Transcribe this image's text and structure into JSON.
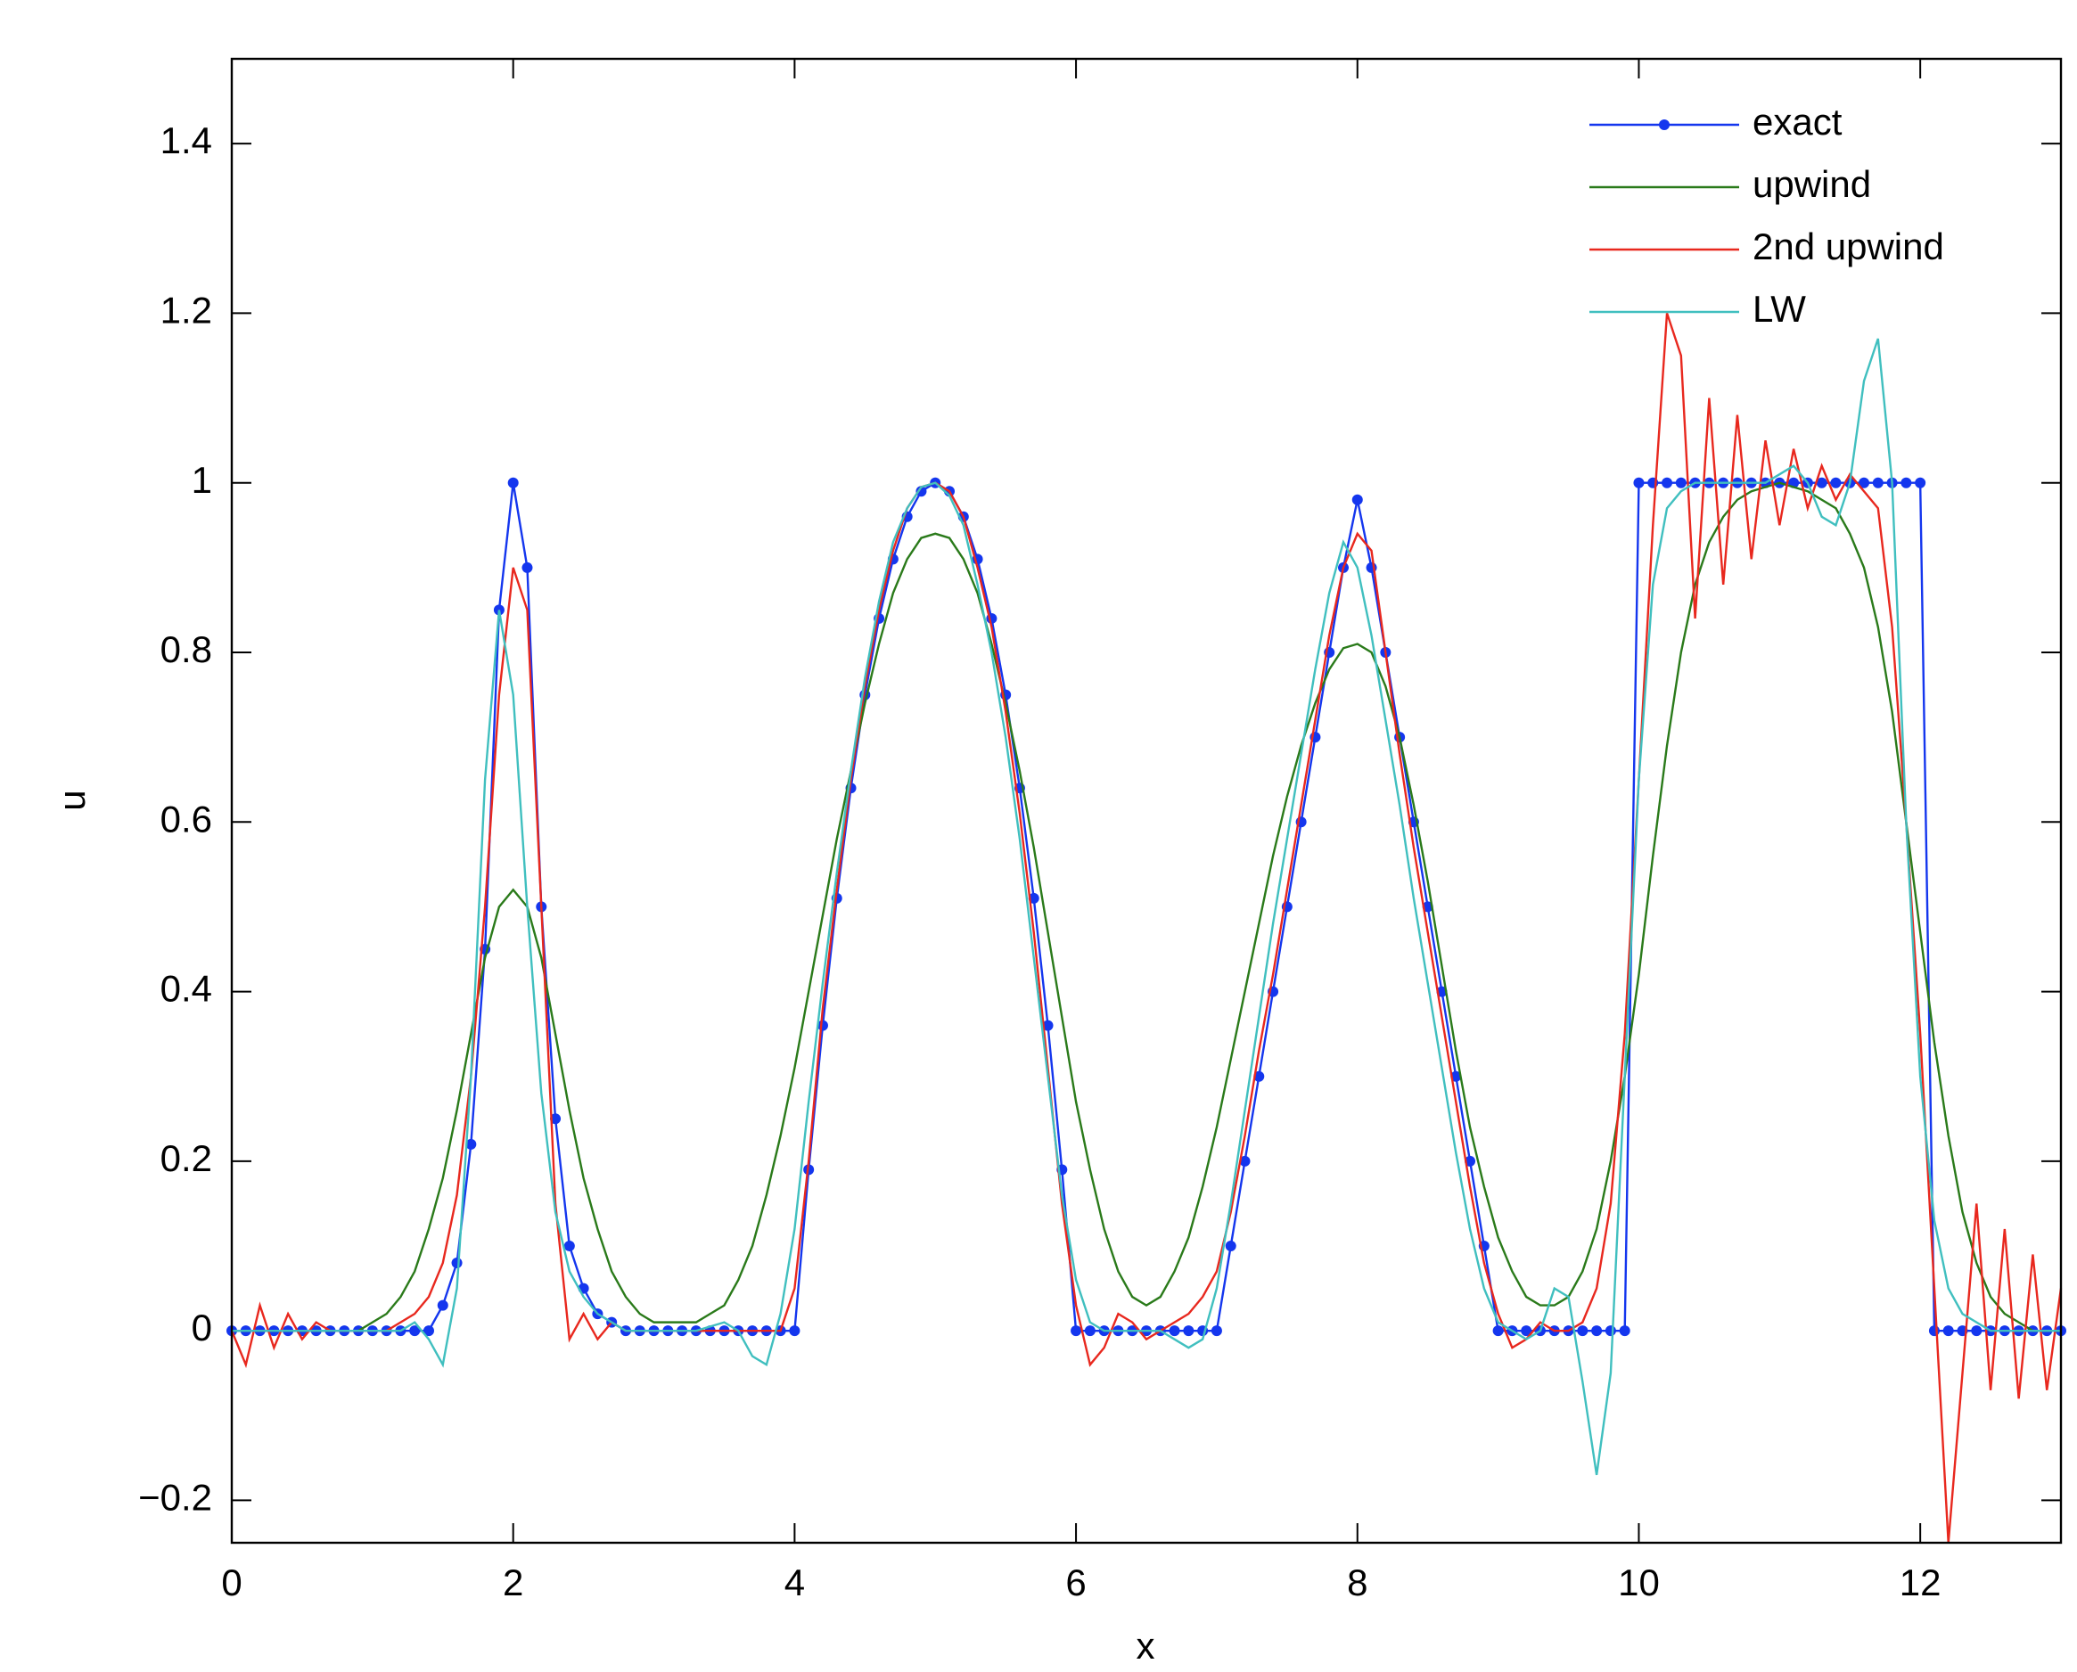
{
  "chart_data": {
    "type": "line",
    "xlabel": "x",
    "ylabel": "u",
    "xlim": [
      0,
      13
    ],
    "ylim": [
      -0.25,
      1.5
    ],
    "xticks": [
      0,
      2,
      4,
      6,
      8,
      10,
      12
    ],
    "yticks": [
      {
        "value": -0.2,
        "label": "−0.2"
      },
      0,
      0.2,
      0.4,
      0.6,
      0.8,
      1,
      1.2,
      1.4
    ],
    "legend": "upper right",
    "x": [
      0,
      0.1,
      0.2,
      0.3,
      0.4,
      0.5,
      0.6,
      0.7,
      0.8,
      0.9,
      1,
      1.1,
      1.2,
      1.3,
      1.4,
      1.5,
      1.6,
      1.7,
      1.8,
      1.9,
      2,
      2.1,
      2.2,
      2.3,
      2.4,
      2.5,
      2.6,
      2.7,
      2.8,
      2.9,
      3,
      3.1,
      3.2,
      3.3,
      3.4,
      3.5,
      3.6,
      3.7,
      3.8,
      3.9,
      4,
      4.1,
      4.2,
      4.3,
      4.4,
      4.5,
      4.6,
      4.7,
      4.8,
      4.9,
      5,
      5.1,
      5.2,
      5.3,
      5.4,
      5.5,
      5.6,
      5.7,
      5.8,
      5.9,
      6,
      6.1,
      6.2,
      6.3,
      6.4,
      6.5,
      6.6,
      6.7,
      6.8,
      6.9,
      7,
      7.1,
      7.2,
      7.3,
      7.4,
      7.5,
      7.6,
      7.7,
      7.8,
      7.9,
      8,
      8.1,
      8.2,
      8.3,
      8.4,
      8.5,
      8.6,
      8.7,
      8.8,
      8.9,
      9,
      9.1,
      9.2,
      9.3,
      9.4,
      9.5,
      9.6,
      9.7,
      9.8,
      9.9,
      10,
      10.1,
      10.2,
      10.3,
      10.4,
      10.5,
      10.6,
      10.7,
      10.8,
      10.9,
      11,
      11.1,
      11.2,
      11.3,
      11.4,
      11.5,
      11.6,
      11.7,
      11.8,
      11.9,
      12,
      12.1,
      12.2,
      12.3,
      12.4,
      12.5,
      12.6,
      12.7,
      12.8,
      12.9,
      13
    ],
    "series": [
      {
        "name": "exact",
        "color": "#1436ee",
        "marker": "dot",
        "values": [
          0,
          0,
          0,
          0,
          0,
          0,
          0,
          0,
          0,
          0,
          0,
          0,
          0,
          0,
          0,
          0.03,
          0.08,
          0.22,
          0.45,
          0.85,
          1,
          0.9,
          0.5,
          0.25,
          0.1,
          0.05,
          0.02,
          0.01,
          0,
          0,
          0,
          0,
          0,
          0,
          0,
          0,
          0,
          0,
          0,
          0,
          0,
          0.19,
          0.36,
          0.51,
          0.64,
          0.75,
          0.84,
          0.91,
          0.96,
          0.99,
          1,
          0.99,
          0.96,
          0.91,
          0.84,
          0.75,
          0.64,
          0.51,
          0.36,
          0.19,
          0,
          0,
          0,
          0,
          0,
          0,
          0,
          0,
          0,
          0,
          0,
          0.1,
          0.2,
          0.3,
          0.4,
          0.5,
          0.6,
          0.7,
          0.8,
          0.9,
          0.98,
          0.9,
          0.8,
          0.7,
          0.6,
          0.5,
          0.4,
          0.3,
          0.2,
          0.1,
          0,
          0,
          0,
          0,
          0,
          0,
          0,
          0,
          0,
          0,
          1,
          1,
          1,
          1,
          1,
          1,
          1,
          1,
          1,
          1,
          1,
          1,
          1,
          1,
          1,
          1,
          1,
          1,
          1,
          1,
          1,
          0,
          0,
          0,
          0,
          0,
          0,
          0,
          0,
          0,
          0
        ]
      },
      {
        "name": "upwind",
        "color": "#2a7a1a",
        "values": [
          0,
          0,
          0,
          0,
          0,
          0,
          0,
          0,
          0,
          0,
          0.01,
          0.02,
          0.04,
          0.07,
          0.12,
          0.18,
          0.26,
          0.35,
          0.44,
          0.5,
          0.52,
          0.5,
          0.44,
          0.35,
          0.26,
          0.18,
          0.12,
          0.07,
          0.04,
          0.02,
          0.01,
          0.01,
          0.01,
          0.01,
          0.02,
          0.03,
          0.06,
          0.1,
          0.16,
          0.23,
          0.31,
          0.4,
          0.49,
          0.58,
          0.66,
          0.74,
          0.81,
          0.87,
          0.91,
          0.935,
          0.94,
          0.935,
          0.91,
          0.87,
          0.81,
          0.74,
          0.66,
          0.57,
          0.47,
          0.37,
          0.27,
          0.19,
          0.12,
          0.07,
          0.04,
          0.03,
          0.04,
          0.07,
          0.11,
          0.17,
          0.24,
          0.32,
          0.4,
          0.48,
          0.56,
          0.63,
          0.69,
          0.74,
          0.78,
          0.805,
          0.81,
          0.8,
          0.76,
          0.7,
          0.62,
          0.53,
          0.43,
          0.33,
          0.24,
          0.17,
          0.11,
          0.07,
          0.04,
          0.03,
          0.03,
          0.04,
          0.07,
          0.12,
          0.2,
          0.3,
          0.42,
          0.56,
          0.69,
          0.8,
          0.88,
          0.93,
          0.96,
          0.98,
          0.99,
          0.995,
          1,
          0.995,
          0.99,
          0.98,
          0.97,
          0.94,
          0.9,
          0.83,
          0.73,
          0.6,
          0.47,
          0.34,
          0.23,
          0.14,
          0.08,
          0.04,
          0.02,
          0.01,
          0,
          0,
          0
        ]
      },
      {
        "name": "2nd upwind",
        "color": "#e8281e",
        "values": [
          0,
          -0.04,
          0.03,
          -0.02,
          0.02,
          -0.01,
          0.01,
          0,
          0,
          0,
          0,
          0,
          0.01,
          0.02,
          0.04,
          0.08,
          0.16,
          0.3,
          0.5,
          0.75,
          0.9,
          0.85,
          0.5,
          0.15,
          -0.01,
          0.02,
          -0.01,
          0.01,
          0,
          0,
          0,
          0,
          0,
          0,
          0,
          0,
          0,
          0,
          0,
          0,
          0.05,
          0.2,
          0.38,
          0.52,
          0.65,
          0.76,
          0.85,
          0.92,
          0.97,
          0.995,
          1,
          0.99,
          0.96,
          0.9,
          0.83,
          0.73,
          0.61,
          0.47,
          0.31,
          0.15,
          0.03,
          -0.04,
          -0.02,
          0.02,
          0.01,
          -0.01,
          0,
          0.01,
          0.02,
          0.04,
          0.07,
          0.14,
          0.23,
          0.33,
          0.42,
          0.52,
          0.62,
          0.72,
          0.82,
          0.9,
          0.94,
          0.92,
          0.8,
          0.68,
          0.57,
          0.47,
          0.37,
          0.27,
          0.17,
          0.08,
          0.02,
          -0.02,
          -0.01,
          0.01,
          0,
          0,
          0.01,
          0.05,
          0.15,
          0.35,
          0.65,
          0.95,
          1.2,
          1.15,
          0.84,
          1.1,
          0.88,
          1.08,
          0.91,
          1.05,
          0.95,
          1.04,
          0.97,
          1.02,
          0.98,
          1.01,
          0.99,
          0.97,
          0.83,
          0.6,
          0.35,
          0.05,
          -0.25,
          -0.05,
          0.15,
          -0.07,
          0.12,
          -0.08,
          0.09,
          -0.07,
          0.05
        ]
      },
      {
        "name": "LW",
        "color": "#40bfbf",
        "values": [
          0,
          0,
          0,
          0,
          0,
          0,
          0,
          0,
          0,
          0,
          0,
          0,
          0,
          0.01,
          -0.01,
          -0.04,
          0.05,
          0.3,
          0.65,
          0.85,
          0.75,
          0.5,
          0.28,
          0.14,
          0.07,
          0.04,
          0.02,
          0.01,
          0,
          0,
          0,
          0,
          0,
          0,
          0.005,
          0.01,
          0,
          -0.03,
          -0.04,
          0.02,
          0.12,
          0.27,
          0.41,
          0.54,
          0.66,
          0.77,
          0.86,
          0.93,
          0.97,
          0.995,
          1,
          0.985,
          0.95,
          0.88,
          0.8,
          0.7,
          0.58,
          0.44,
          0.3,
          0.16,
          0.06,
          0.01,
          0,
          0,
          0,
          0,
          0,
          -0.01,
          -0.02,
          -0.01,
          0.05,
          0.15,
          0.26,
          0.37,
          0.48,
          0.58,
          0.68,
          0.78,
          0.87,
          0.93,
          0.9,
          0.82,
          0.72,
          0.62,
          0.51,
          0.41,
          0.31,
          0.21,
          0.12,
          0.05,
          0.01,
          0,
          -0.01,
          0,
          0.05,
          0.04,
          -0.06,
          -0.17,
          -0.05,
          0.3,
          0.65,
          0.88,
          0.97,
          0.99,
          1,
          1,
          1,
          1,
          1,
          1,
          1.01,
          1.02,
          1,
          0.96,
          0.95,
          1,
          1.12,
          1.17,
          1,
          0.6,
          0.3,
          0.13,
          0.05,
          0.02,
          0.01,
          0,
          0,
          0,
          0,
          0,
          0
        ]
      }
    ]
  }
}
